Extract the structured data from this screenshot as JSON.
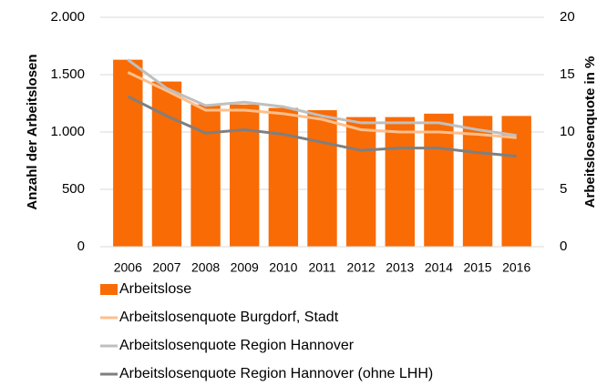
{
  "chart_data": {
    "type": "bar",
    "categories": [
      "2006",
      "2007",
      "2008",
      "2009",
      "2010",
      "2011",
      "2012",
      "2013",
      "2014",
      "2015",
      "2016"
    ],
    "series": [
      {
        "name": "Arbeitslose",
        "type": "bar",
        "color": "#f96b05",
        "values": [
          1630,
          1440,
          1240,
          1240,
          1210,
          1190,
          1130,
          1130,
          1160,
          1140,
          1140
        ]
      },
      {
        "name": "Arbeitslosenquote Burgdorf, Stadt",
        "type": "line",
        "axis": "y2",
        "color": "#fdbf8c",
        "values": [
          15.2,
          13.6,
          11.9,
          11.9,
          11.6,
          11.1,
          10.2,
          10.0,
          10.0,
          9.8,
          9.5
        ]
      },
      {
        "name": "Arbeitslosenquote Region Hannover",
        "type": "line",
        "axis": "y2",
        "color": "#bfbfbf",
        "values": [
          16.3,
          13.8,
          12.3,
          12.6,
          12.2,
          11.4,
          10.8,
          10.8,
          10.8,
          10.2,
          9.7
        ]
      },
      {
        "name": "Arbeitslosenquote Region Hannover (ohne LHH)",
        "type": "line",
        "axis": "y2",
        "color": "#7f7f7f",
        "values": [
          13.1,
          11.4,
          9.9,
          10.2,
          9.8,
          9.1,
          8.4,
          8.6,
          8.6,
          8.2,
          7.9
        ]
      }
    ],
    "ylabel": "Anzahl der Arbeitslosen",
    "y2label": "Arbeitslosenquote in %",
    "ylim": [
      0,
      2000
    ],
    "yticks": [
      0,
      500,
      {
        "value": 1000,
        "label": "1.000"
      },
      {
        "value": 1500,
        "label": "1.500"
      },
      {
        "value": 2000,
        "label": "2.000"
      }
    ],
    "y2lim": [
      0,
      20
    ],
    "y2ticks": [
      0,
      5,
      10,
      15,
      20
    ],
    "grid": true,
    "legend": "bottom"
  }
}
